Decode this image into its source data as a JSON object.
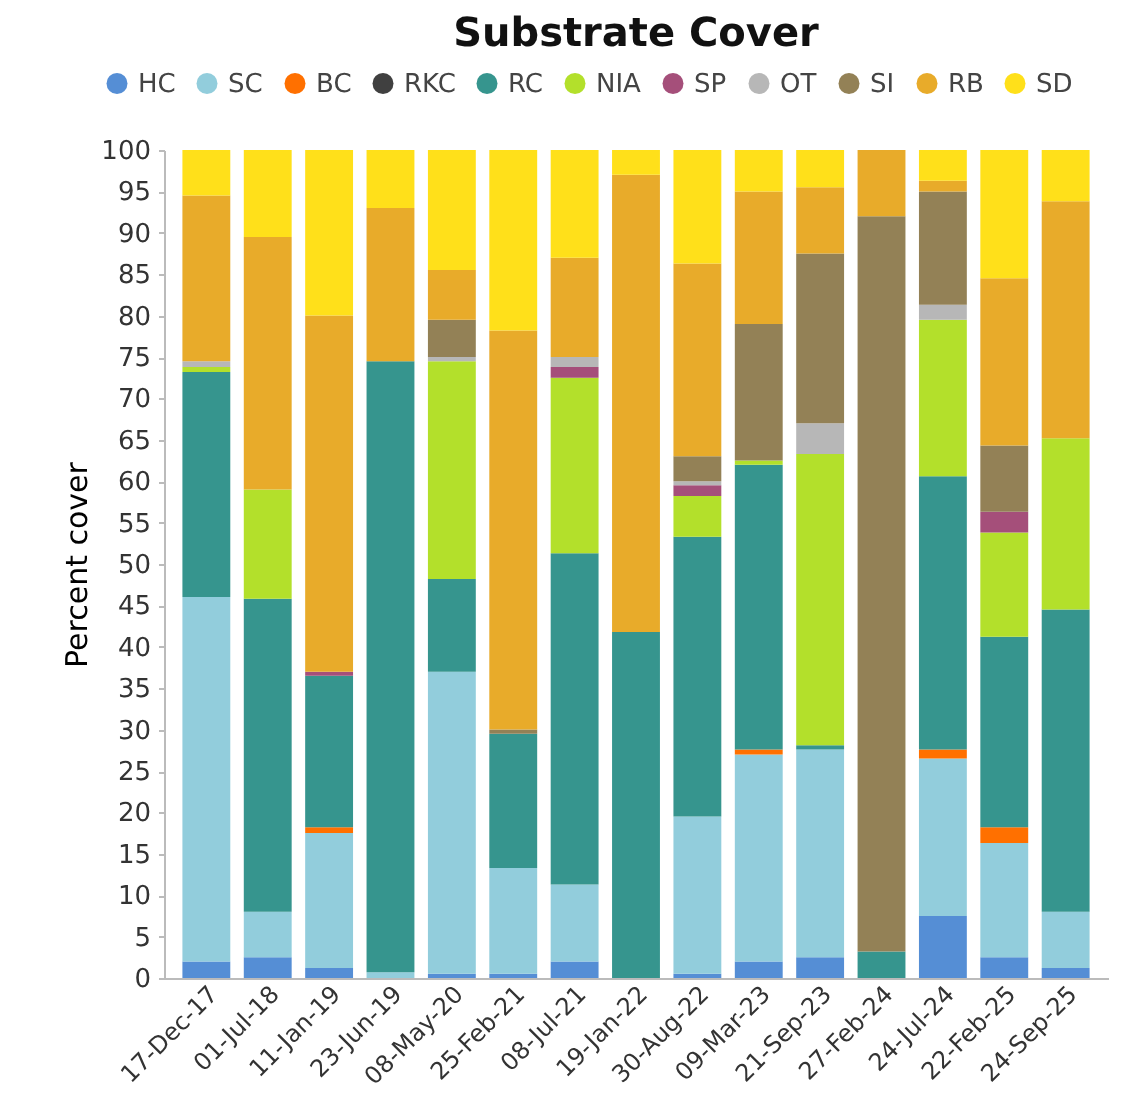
{
  "chart_data": {
    "type": "bar",
    "stacked": true,
    "title": "Substrate Cover",
    "ylabel": "Percent cover",
    "categories": [
      "17-Dec-17",
      "01-Jul-18",
      "11-Jan-19",
      "23-Jun-19",
      "08-May-20",
      "25-Feb-21",
      "08-Jul-21",
      "19-Jan-22",
      "30-Aug-22",
      "09-Mar-23",
      "21-Sep-23",
      "27-Feb-24",
      "24-Jul-24",
      "22-Feb-25",
      "24-Sep-25"
    ],
    "series": [
      {
        "name": "HC",
        "color": "#558ed5",
        "values": [
          2,
          2.5,
          1.2,
          0,
          0.5,
          0.5,
          2,
          0,
          0.5,
          2,
          2.5,
          0,
          7.5,
          2.5,
          1.2
        ]
      },
      {
        "name": "SC",
        "color": "#92cddc",
        "values": [
          44,
          5.5,
          16.3,
          0.7,
          36.5,
          12.8,
          9.3,
          0,
          19,
          25,
          25.1,
          0,
          19,
          13.8,
          6.8
        ]
      },
      {
        "name": "BC",
        "color": "#ff7000",
        "values": [
          0,
          0,
          0.7,
          0,
          0,
          0,
          0,
          0,
          0,
          0.6,
          0,
          0,
          1.1,
          1.9,
          0
        ]
      },
      {
        "name": "RKC",
        "color": "#404040",
        "values": [
          0,
          0,
          0,
          0,
          0,
          0,
          0,
          0,
          0,
          0,
          0,
          0,
          0,
          0,
          0
        ]
      },
      {
        "name": "RC",
        "color": "#36958e",
        "values": [
          27.2,
          37.8,
          18.3,
          73.8,
          11.2,
          16.2,
          40,
          41.8,
          33.8,
          34.4,
          0.5,
          3.2,
          33,
          23,
          36.5
        ]
      },
      {
        "name": "NIA",
        "color": "#b3e02b",
        "values": [
          0.6,
          13.2,
          0,
          0,
          26.3,
          0,
          21.2,
          0,
          4.9,
          0.5,
          35.2,
          0,
          18.9,
          12.6,
          20.7
        ]
      },
      {
        "name": "SP",
        "color": "#a54f7a",
        "values": [
          0,
          0,
          0.5,
          0,
          0,
          0,
          1.3,
          0,
          1.3,
          0,
          0,
          0,
          0,
          2.5,
          0
        ]
      },
      {
        "name": "OT",
        "color": "#b7b7b7",
        "values": [
          0.7,
          0,
          0,
          0,
          0.5,
          0,
          1.2,
          0,
          0.5,
          0,
          3.7,
          0,
          1.8,
          0,
          0
        ]
      },
      {
        "name": "SI",
        "color": "#938156",
        "values": [
          0,
          0,
          0,
          0,
          4.5,
          0.5,
          0,
          0,
          3,
          16.5,
          20.5,
          88.8,
          13.7,
          8,
          0
        ]
      },
      {
        "name": "RB",
        "color": "#e8ab2a",
        "values": [
          20,
          30.5,
          43,
          18.5,
          6,
          48.2,
          12,
          55.2,
          23.3,
          16,
          8,
          8,
          1.3,
          20.2,
          28.6
        ]
      },
      {
        "name": "SD",
        "color": "#ffe01a",
        "values": [
          5.5,
          10.5,
          20,
          7,
          14.5,
          21.8,
          13,
          3,
          13.7,
          5,
          4.5,
          0,
          3.7,
          15.5,
          6.2
        ]
      }
    ],
    "ylim": [
      0,
      100
    ],
    "yticks": [
      0,
      5,
      10,
      15,
      20,
      25,
      30,
      35,
      40,
      45,
      50,
      55,
      60,
      65,
      70,
      75,
      80,
      85,
      90,
      95,
      100
    ],
    "grid": false,
    "legend": "top"
  }
}
